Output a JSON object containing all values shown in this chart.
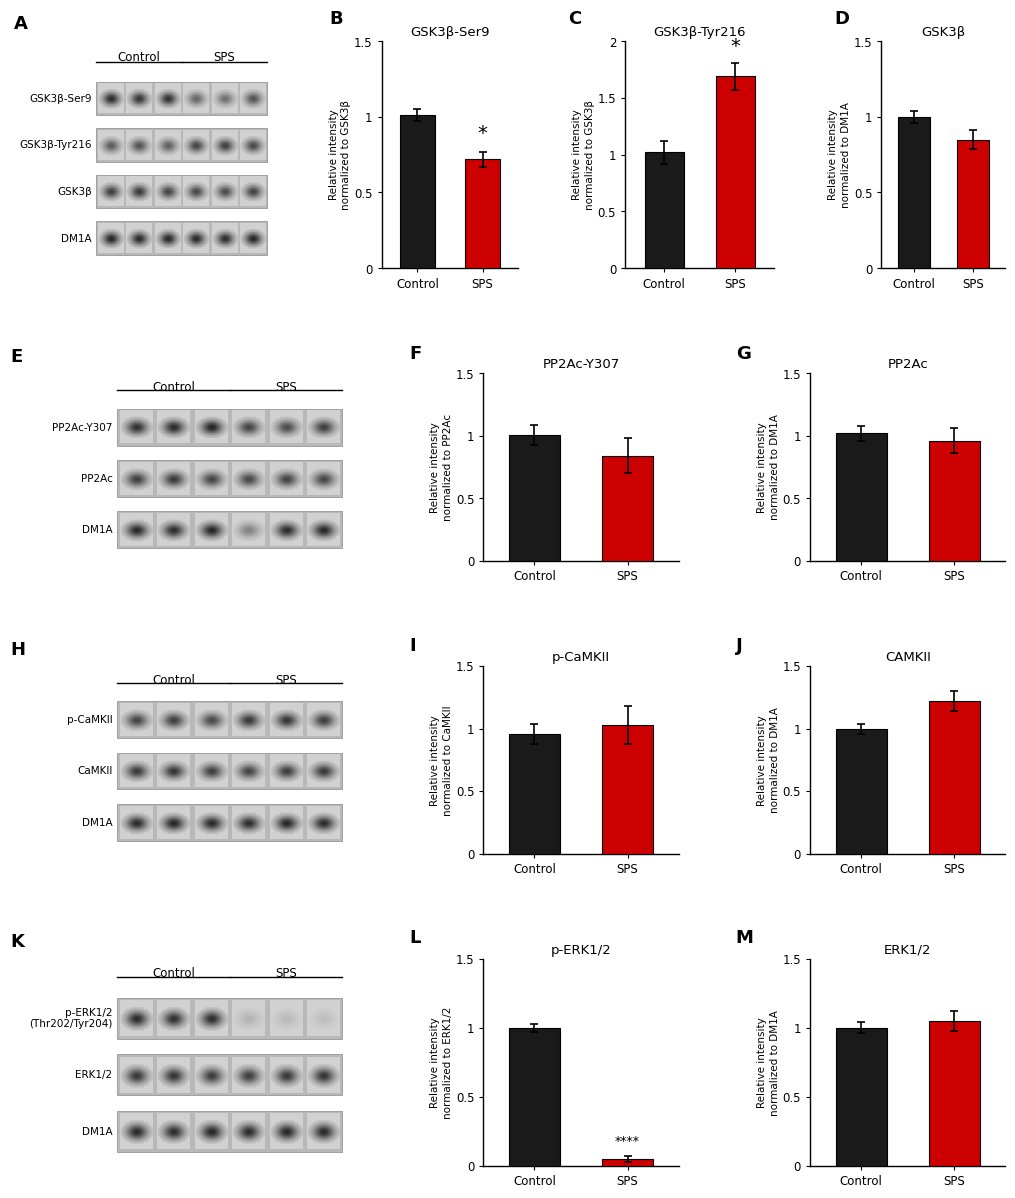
{
  "bar_black": "#1a1a1a",
  "bar_red": "#cc0000",
  "bar_width": 0.55,
  "background": "#ffffff",
  "panels": {
    "B": {
      "title": "GSK3β-Ser9",
      "ylabel": "Relative intensity\nnormalized to GSK3β",
      "ylim": [
        0,
        1.5
      ],
      "yticks": [
        0.0,
        0.5,
        1.0,
        1.5
      ],
      "control_mean": 1.01,
      "control_err": 0.04,
      "sps_mean": 0.72,
      "sps_err": 0.05,
      "significance": "*"
    },
    "C": {
      "title": "GSK3β-Tyr216",
      "ylabel": "Relative intensity\nnormalized to GSK3β",
      "ylim": [
        0,
        2.0
      ],
      "yticks": [
        0.0,
        0.5,
        1.0,
        1.5,
        2.0
      ],
      "control_mean": 1.02,
      "control_err": 0.1,
      "sps_mean": 1.69,
      "sps_err": 0.12,
      "significance": "*"
    },
    "D": {
      "title": "GSK3β",
      "ylabel": "Relative intensity\nnormalized to DM1A",
      "ylim": [
        0,
        1.5
      ],
      "yticks": [
        0.0,
        0.5,
        1.0,
        1.5
      ],
      "control_mean": 1.0,
      "control_err": 0.04,
      "sps_mean": 0.85,
      "sps_err": 0.06,
      "significance": null
    },
    "F": {
      "title": "PP2Ac-Y307",
      "ylabel": "Relative intensity\nnormalized to PP2Ac",
      "ylim": [
        0,
        1.5
      ],
      "yticks": [
        0.0,
        0.5,
        1.0,
        1.5
      ],
      "control_mean": 1.01,
      "control_err": 0.08,
      "sps_mean": 0.84,
      "sps_err": 0.14,
      "significance": null
    },
    "G": {
      "title": "PP2Ac",
      "ylabel": "Relative intensity\nnormalized to DM1A",
      "ylim": [
        0,
        1.5
      ],
      "yticks": [
        0.0,
        0.5,
        1.0,
        1.5
      ],
      "control_mean": 1.02,
      "control_err": 0.06,
      "sps_mean": 0.96,
      "sps_err": 0.1,
      "significance": null
    },
    "I": {
      "title": "p-CaMKII",
      "ylabel": "Relative intensity\nnormalized to CaMKII",
      "ylim": [
        0,
        1.5
      ],
      "yticks": [
        0.0,
        0.5,
        1.0,
        1.5
      ],
      "control_mean": 0.96,
      "control_err": 0.08,
      "sps_mean": 1.03,
      "sps_err": 0.15,
      "significance": null
    },
    "J": {
      "title": "CAMKII",
      "ylabel": "Relative intensity\nnormalized to DM1A",
      "ylim": [
        0,
        1.5
      ],
      "yticks": [
        0.0,
        0.5,
        1.0,
        1.5
      ],
      "control_mean": 1.0,
      "control_err": 0.04,
      "sps_mean": 1.22,
      "sps_err": 0.08,
      "significance": null
    },
    "L": {
      "title": "p-ERK1/2",
      "ylabel": "Relative intensity\nnormalized to ERK1/2",
      "ylim": [
        0,
        1.5
      ],
      "yticks": [
        0.0,
        0.5,
        1.0,
        1.5
      ],
      "control_mean": 1.0,
      "control_err": 0.03,
      "sps_mean": 0.05,
      "sps_err": 0.02,
      "significance": "****"
    },
    "M": {
      "title": "ERK1/2",
      "ylabel": "Relative intensity\nnormalized to DM1A",
      "ylim": [
        0,
        1.5
      ],
      "yticks": [
        0.0,
        0.5,
        1.0,
        1.5
      ],
      "control_mean": 1.0,
      "control_err": 0.04,
      "sps_mean": 1.05,
      "sps_err": 0.07,
      "significance": null
    }
  },
  "wb_panels": {
    "A": {
      "label": "A",
      "bands": [
        "GSK3β-Ser9",
        "GSK3β-Tyr216",
        "GSK3β",
        "DM1A"
      ],
      "n_lanes": 6,
      "intensities": [
        [
          0.85,
          0.8,
          0.82,
          0.55,
          0.5,
          0.65
        ],
        [
          0.6,
          0.65,
          0.58,
          0.72,
          0.75,
          0.7
        ],
        [
          0.75,
          0.78,
          0.72,
          0.7,
          0.68,
          0.73
        ],
        [
          0.88,
          0.85,
          0.87,
          0.86,
          0.84,
          0.88
        ]
      ]
    },
    "E": {
      "label": "E",
      "bands": [
        "PP2Ac-Y307",
        "PP2Ac",
        "DM1A"
      ],
      "n_lanes": 6,
      "intensities": [
        [
          0.82,
          0.85,
          0.88,
          0.72,
          0.68,
          0.75
        ],
        [
          0.75,
          0.78,
          0.72,
          0.7,
          0.73,
          0.71
        ],
        [
          0.86,
          0.84,
          0.88,
          0.4,
          0.85,
          0.87
        ]
      ]
    },
    "H": {
      "label": "H",
      "bands": [
        "p-CaMKII",
        "CaMKII",
        "DM1A"
      ],
      "n_lanes": 6,
      "intensities": [
        [
          0.72,
          0.75,
          0.7,
          0.78,
          0.8,
          0.76
        ],
        [
          0.78,
          0.8,
          0.75,
          0.72,
          0.76,
          0.78
        ],
        [
          0.85,
          0.88,
          0.86,
          0.84,
          0.87,
          0.85
        ]
      ]
    },
    "K": {
      "label": "K",
      "bands": [
        "p-ERK1/2\n(Thr202/Tyr204)",
        "ERK1/2",
        "DM1A"
      ],
      "n_lanes": 6,
      "intensities": [
        [
          0.85,
          0.82,
          0.84,
          0.15,
          0.12,
          0.1
        ],
        [
          0.78,
          0.8,
          0.76,
          0.75,
          0.78,
          0.8
        ],
        [
          0.86,
          0.84,
          0.88,
          0.85,
          0.87,
          0.86
        ]
      ]
    }
  }
}
